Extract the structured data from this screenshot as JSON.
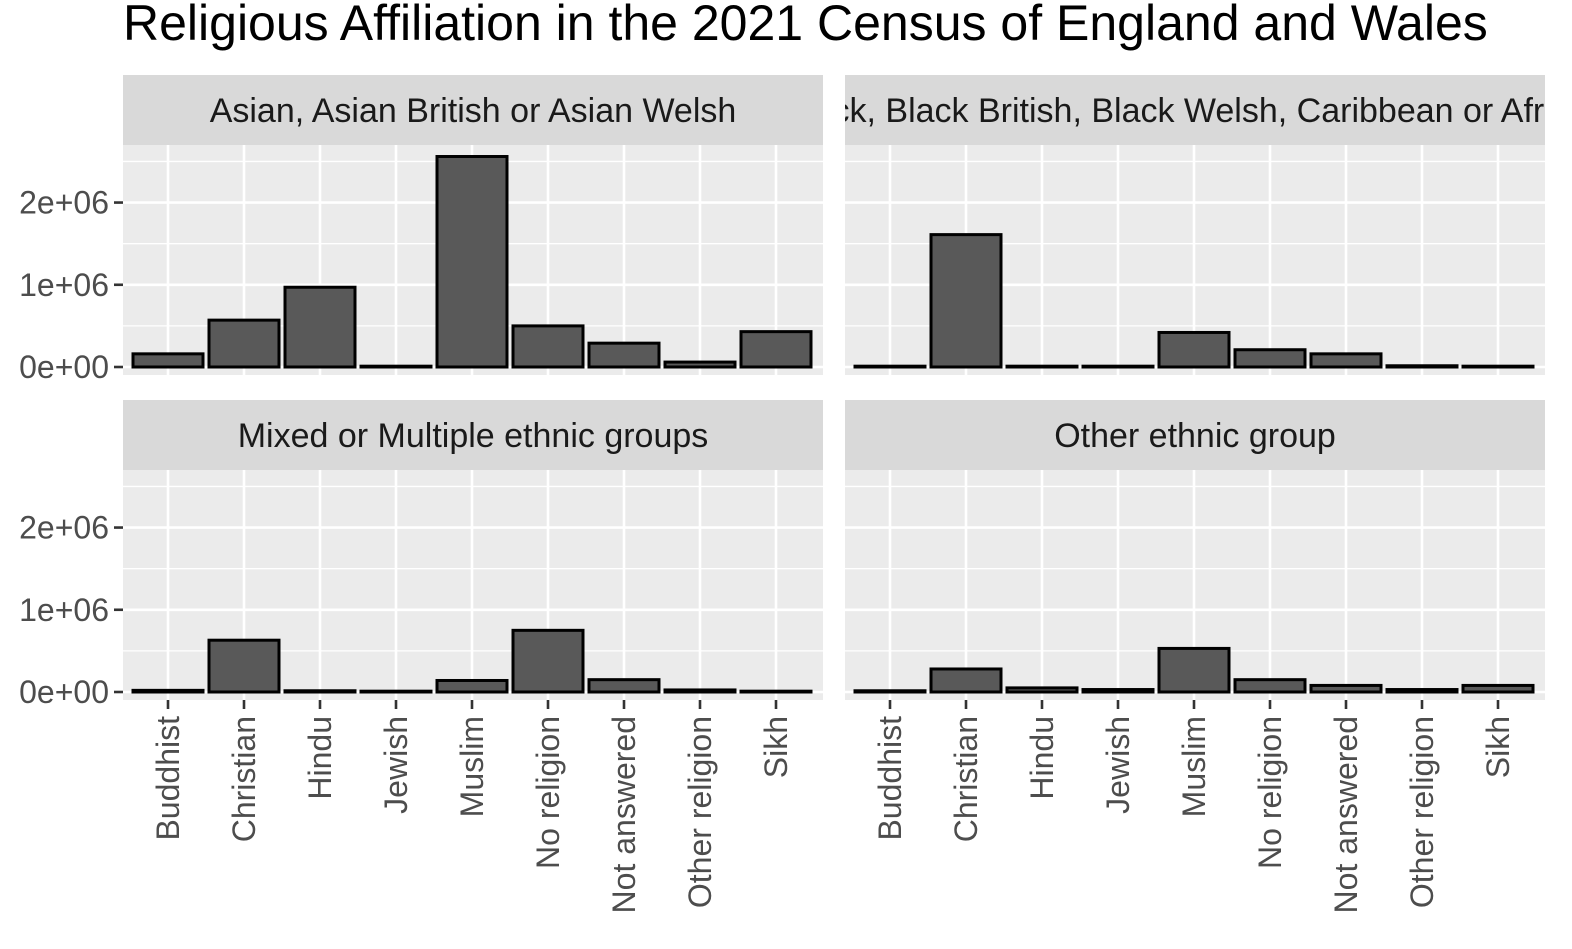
{
  "title": "Religious Affiliation in the 2021 Census of England and Wales",
  "colors": {
    "panel_background": "#ebebeb",
    "strip_background": "#d9d9d9",
    "grid": "#ffffff",
    "bar_fill": "#595959",
    "bar_outline": "#000000",
    "tick": "#333333"
  },
  "chart_data": {
    "type": "bar",
    "layout": "facet-grid-2x2",
    "grid": true,
    "xlabel": "",
    "ylabel": "",
    "ylim": [
      0,
      2700000
    ],
    "y_ticks": [
      0,
      1000000,
      2000000
    ],
    "y_tick_labels": [
      "0e+00",
      "1e+06",
      "2e+06"
    ],
    "categories": [
      "Buddhist",
      "Christian",
      "Hindu",
      "Jewish",
      "Muslim",
      "No religion",
      "Not answered",
      "Other religion",
      "Sikh"
    ],
    "facets": [
      {
        "label": "Asian, Asian British or Asian Welsh",
        "values": [
          160000,
          570000,
          970000,
          10000,
          2560000,
          500000,
          290000,
          60000,
          430000
        ]
      },
      {
        "label": "Black, Black British, Black Welsh, Caribbean or African",
        "values": [
          10000,
          1610000,
          10000,
          10000,
          420000,
          210000,
          160000,
          15000,
          10000
        ]
      },
      {
        "label": "Mixed or Multiple ethnic groups",
        "values": [
          20000,
          630000,
          15000,
          10000,
          140000,
          750000,
          150000,
          25000,
          10000
        ]
      },
      {
        "label": "Other ethnic group",
        "values": [
          15000,
          280000,
          50000,
          30000,
          530000,
          150000,
          80000,
          30000,
          80000
        ]
      }
    ]
  }
}
